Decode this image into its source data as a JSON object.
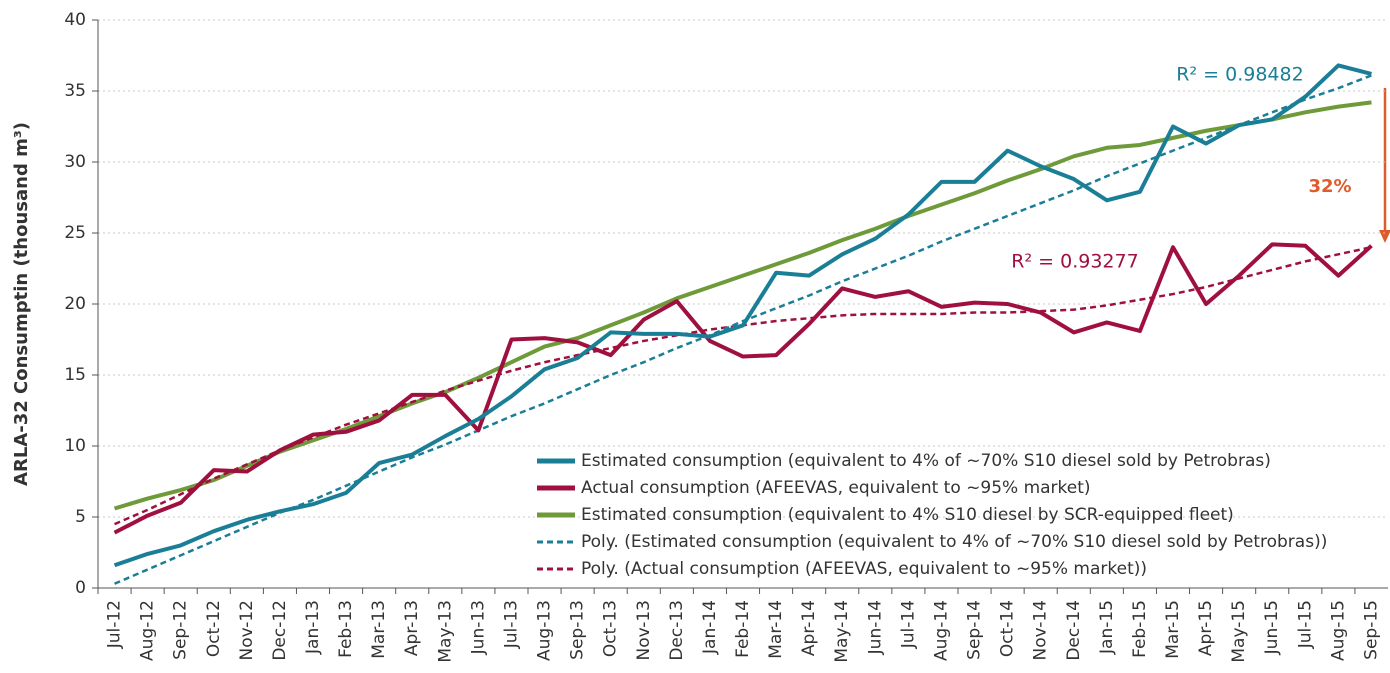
{
  "chart_data": {
    "type": "line",
    "y_axis_label": "ARLA-32 Consumptin (thousand m³)",
    "categories": [
      "Jul-12",
      "Aug-12",
      "Sep-12",
      "Oct-12",
      "Nov-12",
      "Dec-12",
      "Jan-13",
      "Feb-13",
      "Mar-13",
      "Apr-13",
      "May-13",
      "Jun-13",
      "Jul-13",
      "Aug-13",
      "Sep-13",
      "Oct-13",
      "Nov-13",
      "Dec-13",
      "Jan-14",
      "Feb-14",
      "Mar-14",
      "Apr-14",
      "May-14",
      "Jun-14",
      "Jul-14",
      "Aug-14",
      "Sep-14",
      "Oct-14",
      "Nov-14",
      "Dec-14",
      "Jan-15",
      "Feb-15",
      "Mar-15",
      "Apr-15",
      "May-15",
      "Jun-15",
      "Jul-15",
      "Aug-15",
      "Sep-15"
    ],
    "ylim": [
      0,
      40
    ],
    "yticks": [
      0,
      5,
      10,
      15,
      20,
      25,
      30,
      35,
      40
    ],
    "grid": true,
    "series": [
      {
        "name": "Estimated consumption (equivalent to 4% of ~70% S10 diesel sold by Petrobras)",
        "color": "#1a7f96",
        "dashed": false,
        "values": [
          1.6,
          2.4,
          3.0,
          4.0,
          4.8,
          5.4,
          5.9,
          6.7,
          8.8,
          9.4,
          10.7,
          11.9,
          13.5,
          15.4,
          16.2,
          18.0,
          17.9,
          17.9,
          17.7,
          18.5,
          22.2,
          22.0,
          23.5,
          24.6,
          26.3,
          28.6,
          28.6,
          30.8,
          29.7,
          28.8,
          27.3,
          27.9,
          32.5,
          31.3,
          32.6,
          33.0,
          34.6,
          36.8,
          36.2
        ]
      },
      {
        "name": "Actual consumption (AFEEVAS, equivalent to ~95% market)",
        "color": "#a0103f",
        "dashed": false,
        "values": [
          3.9,
          5.1,
          6.0,
          8.3,
          8.2,
          9.7,
          10.8,
          11.0,
          11.8,
          13.6,
          13.6,
          11.1,
          17.5,
          17.6,
          17.3,
          16.4,
          18.9,
          20.2,
          17.4,
          16.3,
          16.4,
          18.6,
          21.1,
          20.5,
          20.9,
          19.8,
          20.1,
          20.0,
          19.4,
          18.0,
          18.7,
          18.1,
          24.0,
          20.0,
          22.0,
          24.2,
          24.1,
          22.0,
          24.1
        ]
      },
      {
        "name": "Estimated consumption (equivalent to 4% S10 diesel by SCR-equipped fleet)",
        "color": "#6f9a3a",
        "dashed": false,
        "values": [
          5.6,
          6.3,
          6.9,
          7.6,
          8.6,
          9.6,
          10.4,
          11.2,
          12.1,
          13.0,
          13.8,
          14.8,
          15.9,
          17.0,
          17.6,
          18.5,
          19.4,
          20.4,
          21.2,
          22.0,
          22.8,
          23.6,
          24.5,
          25.3,
          26.2,
          27.0,
          27.8,
          28.7,
          29.5,
          30.4,
          31.0,
          31.2,
          31.7,
          32.2,
          32.6,
          33.0,
          33.5,
          33.9,
          34.2
        ]
      },
      {
        "name": "Poly. (Estimated consumption (equivalent to 4% of ~70% S10 diesel sold by Petrobras))",
        "color": "#1a7f96",
        "dashed": true,
        "values": [
          0.3,
          1.3,
          2.3,
          3.3,
          4.3,
          5.3,
          6.2,
          7.2,
          8.2,
          9.2,
          10.1,
          11.1,
          12.1,
          13.0,
          14.0,
          15.0,
          15.9,
          16.9,
          17.8,
          18.8,
          19.7,
          20.6,
          21.6,
          22.5,
          23.4,
          24.4,
          25.3,
          26.2,
          27.1,
          28.0,
          29.0,
          29.9,
          30.8,
          31.7,
          32.6,
          33.5,
          34.4,
          35.2,
          36.1
        ]
      },
      {
        "name": "Poly. (Actual consumption (AFEEVAS, equivalent to ~95% market))",
        "color": "#a0103f",
        "dashed": true,
        "values": [
          4.5,
          5.5,
          6.6,
          7.7,
          8.7,
          9.7,
          10.6,
          11.5,
          12.3,
          13.1,
          13.9,
          14.6,
          15.3,
          15.9,
          16.4,
          16.9,
          17.4,
          17.8,
          18.2,
          18.5,
          18.8,
          19.0,
          19.2,
          19.3,
          19.3,
          19.3,
          19.4,
          19.4,
          19.5,
          19.6,
          19.9,
          20.3,
          20.7,
          21.2,
          21.8,
          22.4,
          23.0,
          23.5,
          24.0
        ]
      }
    ],
    "annotations": [
      {
        "text": "R² = 0.98482",
        "color": "#1a7f96"
      },
      {
        "text": "R² = 0.93277",
        "color": "#a0103f"
      },
      {
        "text": "32%",
        "color": "#e05a2b"
      }
    ]
  }
}
